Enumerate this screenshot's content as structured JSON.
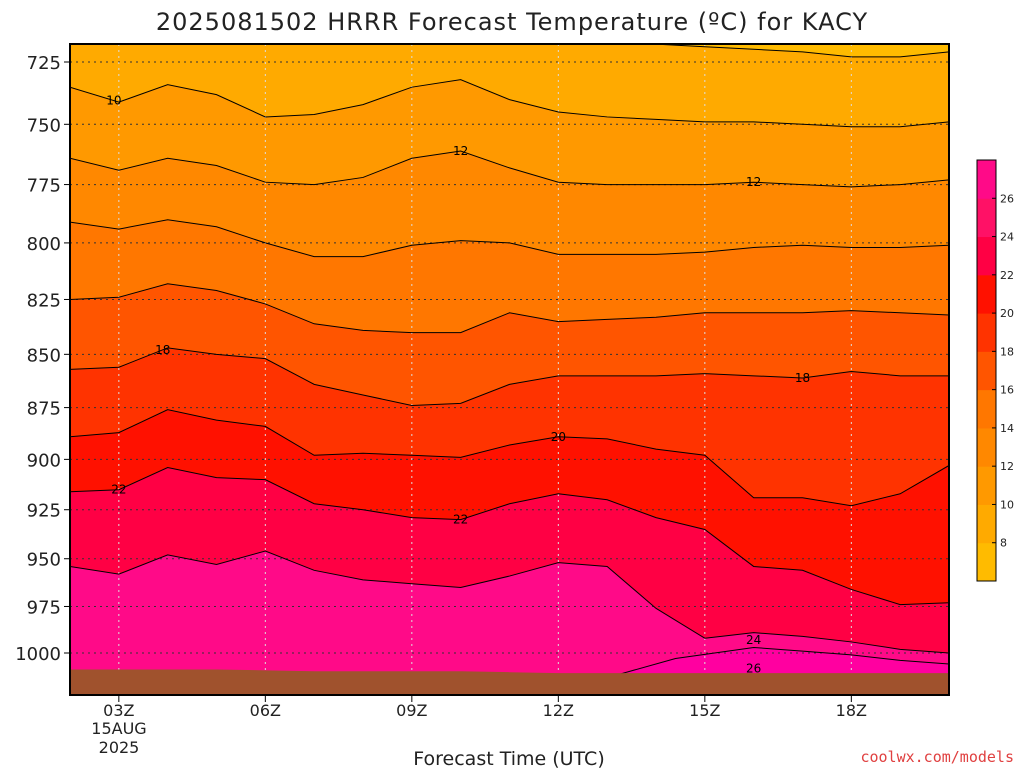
{
  "chart_data": {
    "type": "heatmap",
    "title": "2025081502 HRRR Forecast Temperature (ºC) for KACY",
    "xlabel": "Forecast Time (UTC)",
    "ylabel": "",
    "credit": "coolwx.com/models",
    "x_hours": [
      2,
      3,
      4,
      5,
      6,
      7,
      8,
      9,
      10,
      11,
      12,
      13,
      14,
      15,
      16,
      17,
      18,
      19,
      20
    ],
    "xlim": [
      2,
      20
    ],
    "ylim": [
      1036,
      718
    ],
    "y_pressure_scale": "log",
    "x_ticks": [
      {
        "hour": 3,
        "label": "03Z"
      },
      {
        "hour": 6,
        "label": "06Z"
      },
      {
        "hour": 9,
        "label": "09Z"
      },
      {
        "hour": 12,
        "label": "12Z"
      },
      {
        "hour": 15,
        "label": "15Z"
      },
      {
        "hour": 18,
        "label": "18Z"
      }
    ],
    "x_date_lines": [
      "15AUG",
      "2025"
    ],
    "y_ticks": [
      {
        "p": 725,
        "label": "725"
      },
      {
        "p": 750,
        "label": "750"
      },
      {
        "p": 775,
        "label": "775"
      },
      {
        "p": 800,
        "label": "800"
      },
      {
        "p": 825,
        "label": "825"
      },
      {
        "p": 850,
        "label": "850"
      },
      {
        "p": 875,
        "label": "875"
      },
      {
        "p": 900,
        "label": "900"
      },
      {
        "p": 925,
        "label": "925"
      },
      {
        "p": 950,
        "label": "950"
      },
      {
        "p": 975,
        "label": "975"
      },
      {
        "p": 1000,
        "label": "1000"
      }
    ],
    "grid": true,
    "colorbar": {
      "placement": "right",
      "levels": [
        6,
        8,
        10,
        12,
        14,
        16,
        18,
        20,
        22,
        24,
        26,
        28
      ],
      "colors": [
        "#ffbb00",
        "#ffaa00",
        "#ff9900",
        "#ff8800",
        "#ff7700",
        "#ff5500",
        "#ff3300",
        "#ff1100",
        "#ff0044",
        "#ff1166",
        "#ff0a88"
      ],
      "tick_labels": [
        "8",
        "10",
        "12",
        "14",
        "16",
        "18",
        "20",
        "22",
        "24",
        "26"
      ]
    },
    "surface_pressure": [
      1009,
      1009,
      1009,
      1009,
      1009.5,
      1010,
      1010,
      1010,
      1010,
      1010.5,
      1011,
      1011,
      1011,
      1011,
      1011,
      1011,
      1011,
      1011,
      1011
    ],
    "surface_color": "#a0522d",
    "isotherms": [
      {
        "temp": 10,
        "p": [
          718,
          718,
          718,
          718,
          718,
          718,
          718,
          718,
          718,
          718,
          718,
          718,
          718,
          719,
          720,
          721,
          723,
          723,
          721
        ]
      },
      {
        "temp": 10,
        "label": "10",
        "p": [
          735,
          741,
          734,
          738,
          747,
          746,
          742,
          735,
          732,
          740,
          745,
          747,
          748,
          749,
          749,
          750,
          751,
          751,
          749
        ]
      },
      {
        "temp": 12,
        "label": "12",
        "p": [
          764,
          769,
          764,
          767,
          774,
          775,
          772,
          764,
          761,
          768,
          774,
          775,
          775,
          775,
          774,
          775,
          776,
          775,
          773
        ]
      },
      {
        "temp": 14,
        "p": [
          791,
          794,
          790,
          793,
          800,
          806,
          806,
          801,
          799,
          800,
          805,
          805,
          805,
          804,
          802,
          801,
          802,
          802,
          801
        ]
      },
      {
        "temp": 16,
        "p": [
          825,
          824,
          818,
          821,
          827,
          836,
          839,
          840,
          840,
          831,
          835,
          834,
          833,
          831,
          831,
          831,
          830,
          831,
          832
        ]
      },
      {
        "temp": 18,
        "label": "18",
        "p": [
          857,
          856,
          847,
          850,
          852,
          864,
          869,
          874,
          873,
          864,
          860,
          860,
          860,
          859,
          860,
          861,
          858,
          860,
          860
        ]
      },
      {
        "temp": 20,
        "label": "20",
        "p": [
          889,
          887,
          876,
          881,
          884,
          898,
          897,
          898,
          899,
          893,
          889,
          890,
          895,
          898,
          919,
          919,
          923,
          917,
          903
        ]
      },
      {
        "temp": 22,
        "label": "22",
        "p": [
          916,
          915,
          904,
          909,
          910,
          922,
          925,
          929,
          930,
          922,
          917,
          920,
          929,
          935,
          954,
          956,
          966,
          974,
          973
        ]
      },
      {
        "temp": 24,
        "label": "24",
        "p": [
          954,
          958,
          948,
          953,
          946,
          956,
          961,
          963,
          965,
          959,
          952,
          954,
          976,
          992,
          989,
          991,
          994,
          998,
          1000
        ]
      }
    ]
  }
}
